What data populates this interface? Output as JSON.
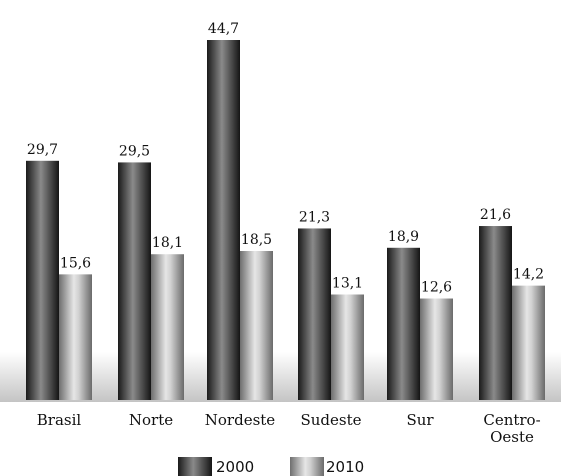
{
  "chart_data": {
    "type": "bar",
    "categories": [
      "Brasil",
      "Norte",
      "Nordeste",
      "Sudeste",
      "Sur",
      "Centro-Oeste"
    ],
    "category_lines": [
      [
        "Brasil"
      ],
      [
        "Norte"
      ],
      [
        "Nordeste"
      ],
      [
        "Sudeste"
      ],
      [
        "Sur"
      ],
      [
        "Centro-",
        "Oeste"
      ]
    ],
    "series": [
      {
        "name": "2000",
        "values": [
          29.7,
          29.5,
          44.7,
          21.3,
          18.9,
          21.6
        ],
        "labels": [
          "29,7",
          "29,5",
          "44,7",
          "21,3",
          "18,9",
          "21,6"
        ]
      },
      {
        "name": "2010",
        "values": [
          15.6,
          18.1,
          18.5,
          13.1,
          12.6,
          14.2
        ],
        "labels": [
          "15,6",
          "18,1",
          "18,5",
          "13,1",
          "12,6",
          "14,2"
        ]
      }
    ],
    "ylim": [
      0,
      44.7
    ],
    "grid": false,
    "legend": "bottom",
    "colors": {
      "series_2000": "#2e2e2e",
      "series_2010": "#9a9a9a"
    }
  }
}
